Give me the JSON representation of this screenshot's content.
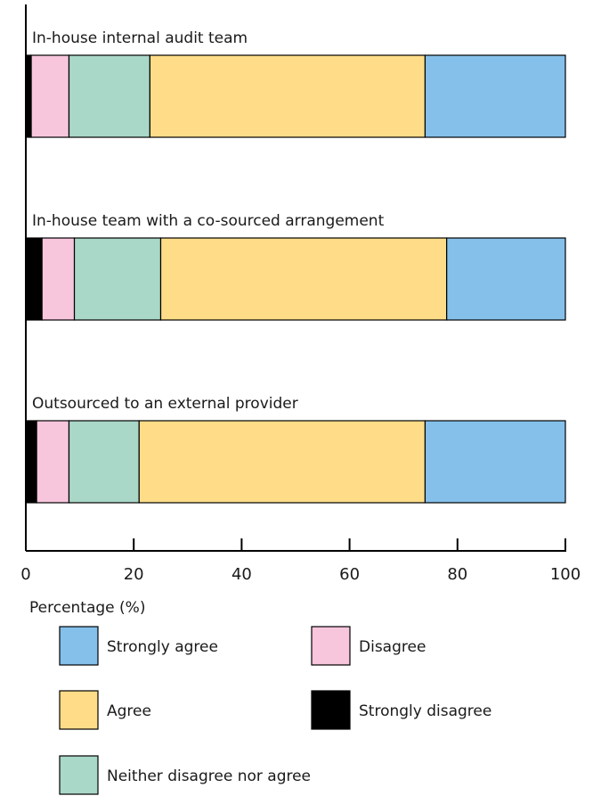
{
  "chart_data": {
    "type": "bar",
    "orientation": "horizontal",
    "stacked": true,
    "categories": [
      "In-house internal audit team",
      "In-house team with a co-sourced arrangement",
      "Outsourced to an external provider"
    ],
    "series": [
      {
        "name": "Strongly disagree",
        "color": "#000000",
        "values": [
          1,
          3,
          2
        ]
      },
      {
        "name": "Disagree",
        "color": "#F7C5DC",
        "values": [
          7,
          6,
          6
        ]
      },
      {
        "name": "Neither disagree nor agree",
        "color": "#A9D7C8",
        "values": [
          15,
          16,
          13
        ]
      },
      {
        "name": "Agree",
        "color": "#FFDD88",
        "values": [
          51,
          53,
          53
        ]
      },
      {
        "name": "Strongly agree",
        "color": "#85C0EA",
        "values": [
          26,
          22,
          26
        ]
      }
    ],
    "xlabel": "Percentage (%)",
    "xlim": [
      0,
      100
    ],
    "xticks": [
      "0",
      "20",
      "40",
      "60",
      "80",
      "100"
    ],
    "legend": {
      "placement": "bottom",
      "order": [
        "Strongly agree",
        "Disagree",
        "Agree",
        "Strongly disagree",
        "Neither disagree nor agree"
      ]
    },
    "grid": false
  }
}
